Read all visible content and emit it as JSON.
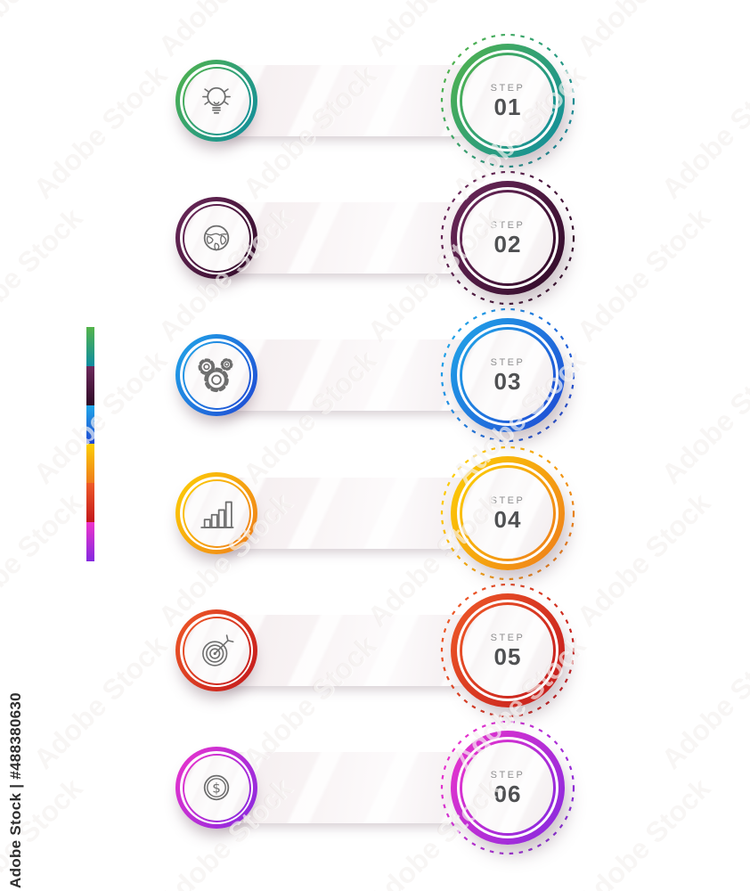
{
  "page": {
    "background": "#ffffff"
  },
  "text_colors": {
    "step_label": "#8f8f90",
    "step_number": "#4f5052",
    "icon": "#6e6e6e"
  },
  "steps": [
    {
      "step_label": "STEP",
      "number": "01",
      "icon": "lightbulb-icon",
      "color_a": "#54b44a",
      "color_b": "#0e8ca1"
    },
    {
      "step_label": "STEP",
      "number": "02",
      "icon": "globe-icon",
      "color_a": "#6d2a5c",
      "color_b": "#2e0a26"
    },
    {
      "step_label": "STEP",
      "number": "03",
      "icon": "gears-icon",
      "color_a": "#21a7e8",
      "color_b": "#1f47d3"
    },
    {
      "step_label": "STEP",
      "number": "04",
      "icon": "bar-chart-icon",
      "color_a": "#fdd004",
      "color_b": "#ee7b1c"
    },
    {
      "step_label": "STEP",
      "number": "05",
      "icon": "target-icon",
      "color_a": "#ef5b28",
      "color_b": "#c2171c"
    },
    {
      "step_label": "STEP",
      "number": "06",
      "icon": "dollar-icon",
      "color_a": "#ee34cb",
      "color_b": "#8329df"
    }
  ],
  "dollar_glyph": "$",
  "watermark": {
    "diagonal_text": "Adobe Stock",
    "id_text": "Adobe Stock | #488380630"
  }
}
